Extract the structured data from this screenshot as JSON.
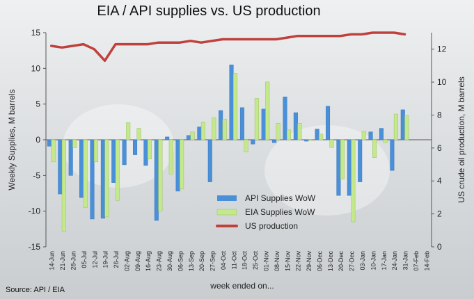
{
  "chart_data": {
    "type": "bar",
    "title": "EIA / API supplies vs. US production",
    "xlabel": "week ended on...",
    "ylabel": "Weekly Supplies, M barrels",
    "y2label": "US crude oil production, M barrels",
    "ylim": [
      -15,
      15
    ],
    "yticks": [
      -15,
      -10,
      -5,
      0,
      5,
      10,
      15
    ],
    "y2lim": [
      0,
      13
    ],
    "y2ticks": [
      0,
      2,
      4,
      6,
      8,
      10,
      12
    ],
    "grid": false,
    "legend_position": "lower-center",
    "source": "Source: API / EIA",
    "categories": [
      "14-Jun",
      "21-Jun",
      "28-Jun",
      "05-Jul",
      "12-Jul",
      "19-Jul",
      "26-Jul",
      "02-Aug",
      "09-Aug",
      "16-Aug",
      "23-Aug",
      "30-Aug",
      "06-Sep",
      "13-Sep",
      "20-Sep",
      "27-Sep",
      "04-Oct",
      "11-Oct",
      "18-Oct",
      "25-Oct",
      "01-Nov",
      "08-Nov",
      "15-Nov",
      "22-Nov",
      "29-Nov",
      "06-Dec",
      "13-Dec",
      "20-Dec",
      "27-Dec",
      "03-Jan",
      "10-Jan",
      "17-Jan",
      "24-Jan",
      "31-Jan",
      "07-Feb",
      "14-Feb"
    ],
    "series": [
      {
        "name": "API Supplies WoW",
        "kind": "bar",
        "axis": "left",
        "color": "#4a90d9",
        "values": [
          -0.9,
          -7.6,
          -5.0,
          -8.1,
          -11.1,
          -11.0,
          -6.0,
          -3.5,
          -2.1,
          -3.6,
          -11.3,
          0.4,
          -7.2,
          0.6,
          1.8,
          -5.9,
          4.1,
          10.5,
          4.5,
          -0.6,
          4.3,
          -0.4,
          6.0,
          3.8,
          -0.2,
          1.5,
          4.7,
          -7.8,
          -7.8,
          -5.9,
          1.1,
          1.6,
          -4.3,
          4.2,
          null,
          null
        ]
      },
      {
        "name": "EIA Supplies WoW",
        "kind": "bar",
        "axis": "left",
        "color": "#c4e88c",
        "values": [
          -3.1,
          -12.8,
          -1.1,
          -9.5,
          -3.1,
          -10.8,
          -8.5,
          2.4,
          1.6,
          -2.7,
          -10.0,
          -4.8,
          -6.9,
          1.1,
          2.5,
          3.1,
          2.9,
          9.3,
          -1.7,
          5.8,
          8.1,
          2.3,
          1.4,
          2.3,
          -0.1,
          0.8,
          -1.1,
          -5.5,
          -11.5,
          1.2,
          -2.5,
          -0.4,
          3.6,
          3.4,
          null,
          null
        ]
      },
      {
        "name": "US production",
        "kind": "line",
        "axis": "right",
        "color": "#c0403c",
        "values": [
          12.2,
          12.1,
          12.2,
          12.3,
          12.0,
          11.3,
          12.3,
          12.3,
          12.3,
          12.3,
          12.4,
          12.4,
          12.4,
          12.5,
          12.4,
          12.5,
          12.6,
          12.6,
          12.6,
          12.6,
          12.6,
          12.6,
          12.7,
          12.8,
          12.8,
          12.8,
          12.8,
          12.8,
          12.9,
          12.9,
          13.0,
          13.0,
          13.0,
          12.9,
          null,
          null
        ]
      }
    ]
  }
}
